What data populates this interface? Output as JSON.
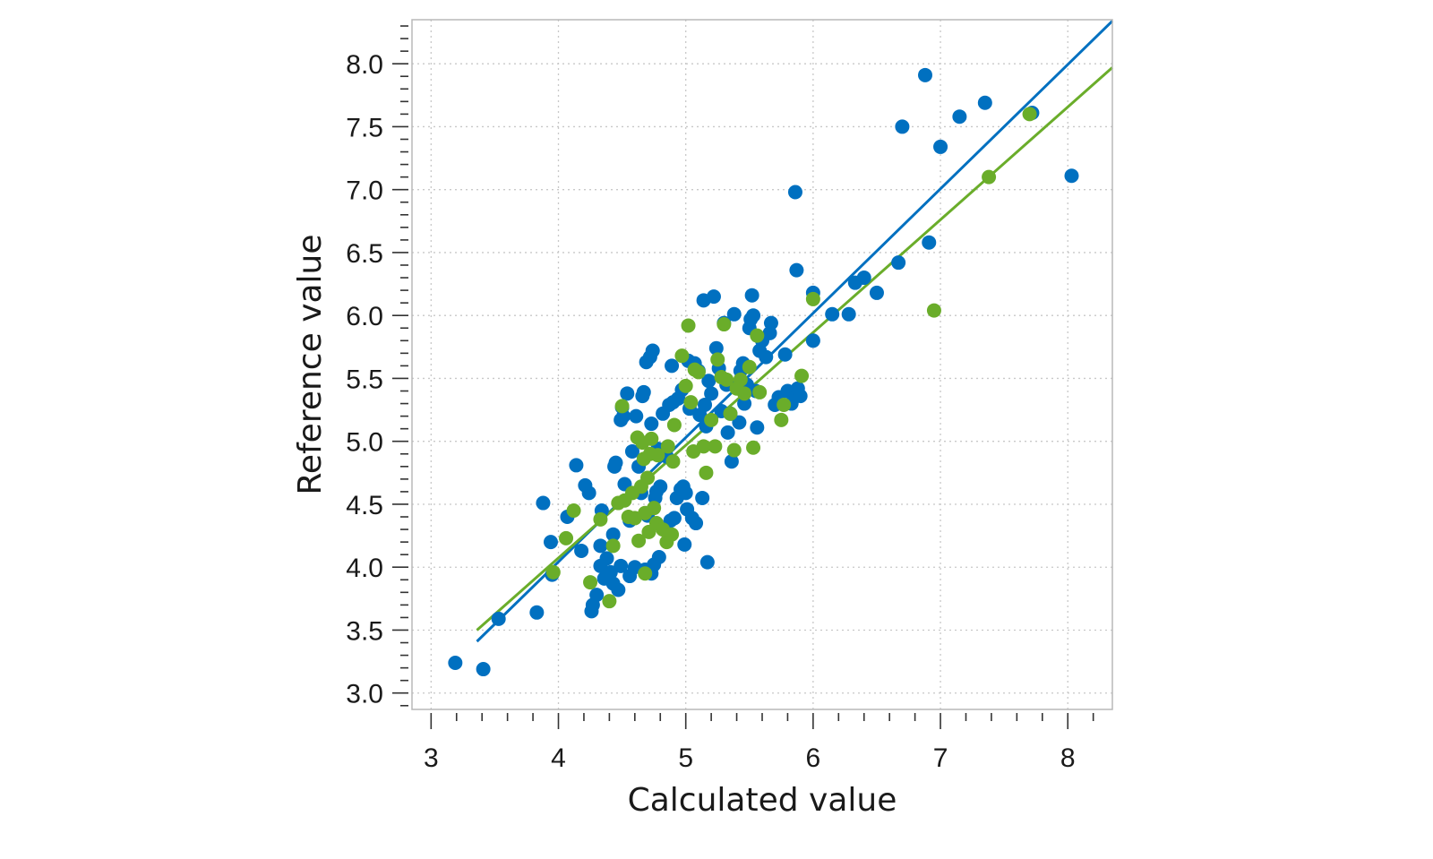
{
  "chart_data": {
    "type": "scatter",
    "xlabel": "Calculated value",
    "ylabel": "Reference value",
    "xlim": [
      2.85,
      8.35
    ],
    "ylim": [
      2.87,
      8.35
    ],
    "x_ticks": [
      "3",
      "4",
      "5",
      "6",
      "7",
      "8"
    ],
    "y_ticks": [
      "3.0",
      "3.5",
      "4.0",
      "4.5",
      "5.0",
      "5.5",
      "6.0",
      "6.5",
      "7.0",
      "7.5",
      "8.0"
    ],
    "grid": true,
    "colors": {
      "blue": "#0070c0",
      "green": "#6aad2a"
    },
    "series": [
      {
        "color": "#0070c0",
        "points": [
          [
            3.19,
            3.24
          ],
          [
            3.41,
            3.19
          ],
          [
            3.53,
            3.59
          ],
          [
            3.83,
            3.64
          ],
          [
            3.88,
            4.51
          ],
          [
            3.94,
            4.2
          ],
          [
            3.95,
            3.94
          ],
          [
            4.07,
            4.4
          ],
          [
            4.14,
            4.81
          ],
          [
            4.18,
            4.13
          ],
          [
            4.21,
            4.65
          ],
          [
            4.24,
            4.59
          ],
          [
            4.26,
            3.65
          ],
          [
            4.27,
            3.7
          ],
          [
            4.3,
            3.78
          ],
          [
            4.33,
            4.01
          ],
          [
            4.33,
            4.17
          ],
          [
            4.34,
            4.45
          ],
          [
            4.36,
            3.91
          ],
          [
            4.38,
            4.07
          ],
          [
            4.41,
            3.96
          ],
          [
            4.43,
            3.87
          ],
          [
            4.43,
            4.26
          ],
          [
            4.44,
            4.8
          ],
          [
            4.45,
            4.83
          ],
          [
            4.47,
            3.82
          ],
          [
            4.49,
            5.17
          ],
          [
            4.49,
            4.01
          ],
          [
            4.5,
            5.27
          ],
          [
            4.51,
            5.2
          ],
          [
            4.52,
            4.66
          ],
          [
            4.54,
            5.38
          ],
          [
            4.56,
            3.93
          ],
          [
            4.56,
            4.37
          ],
          [
            4.58,
            4.92
          ],
          [
            4.6,
            4.0
          ],
          [
            4.61,
            5.2
          ],
          [
            4.63,
            4.8
          ],
          [
            4.65,
            4.59
          ],
          [
            4.66,
            5.36
          ],
          [
            4.67,
            5.39
          ],
          [
            4.68,
            3.98
          ],
          [
            4.69,
            5.63
          ],
          [
            4.7,
            4.41
          ],
          [
            4.72,
            5.67
          ],
          [
            4.73,
            3.95
          ],
          [
            4.73,
            5.14
          ],
          [
            4.74,
            5.72
          ],
          [
            4.75,
            4.02
          ],
          [
            4.76,
            4.55
          ],
          [
            4.77,
            4.6
          ],
          [
            4.78,
            4.94
          ],
          [
            4.79,
            4.08
          ],
          [
            4.8,
            4.64
          ],
          [
            4.82,
            5.22
          ],
          [
            4.85,
            4.88
          ],
          [
            4.87,
            5.29
          ],
          [
            4.88,
            4.37
          ],
          [
            4.89,
            5.6
          ],
          [
            4.9,
            5.31
          ],
          [
            4.91,
            4.39
          ],
          [
            4.93,
            4.55
          ],
          [
            4.94,
            5.34
          ],
          [
            4.96,
            4.62
          ],
          [
            4.97,
            5.41
          ],
          [
            4.98,
            4.64
          ],
          [
            4.99,
            4.18
          ],
          [
            5.0,
            4.59
          ],
          [
            5.01,
            4.46
          ],
          [
            5.02,
            5.64
          ],
          [
            5.03,
            5.26
          ],
          [
            5.05,
            4.39
          ],
          [
            5.07,
            5.62
          ],
          [
            5.08,
            4.35
          ],
          [
            5.1,
            5.56
          ],
          [
            5.11,
            5.21
          ],
          [
            5.13,
            4.55
          ],
          [
            5.14,
            6.12
          ],
          [
            5.15,
            5.29
          ],
          [
            5.16,
            5.12
          ],
          [
            5.17,
            4.04
          ],
          [
            5.18,
            5.48
          ],
          [
            5.2,
            5.38
          ],
          [
            5.22,
            6.15
          ],
          [
            5.24,
            5.74
          ],
          [
            5.26,
            5.58
          ],
          [
            5.28,
            5.24
          ],
          [
            5.3,
            5.94
          ],
          [
            5.32,
            5.45
          ],
          [
            5.33,
            5.07
          ],
          [
            5.35,
            5.22
          ],
          [
            5.36,
            4.84
          ],
          [
            5.38,
            6.01
          ],
          [
            5.4,
            5.44
          ],
          [
            5.42,
            5.15
          ],
          [
            5.43,
            5.56
          ],
          [
            5.45,
            5.62
          ],
          [
            5.46,
            5.3
          ],
          [
            5.48,
            5.45
          ],
          [
            5.5,
            5.9
          ],
          [
            5.51,
            5.97
          ],
          [
            5.52,
            6.16
          ],
          [
            5.53,
            6.0
          ],
          [
            5.55,
            5.4
          ],
          [
            5.56,
            5.11
          ],
          [
            5.58,
            5.72
          ],
          [
            5.6,
            5.8
          ],
          [
            5.63,
            5.67
          ],
          [
            5.66,
            5.86
          ],
          [
            5.67,
            5.94
          ],
          [
            5.7,
            5.29
          ],
          [
            5.73,
            5.35
          ],
          [
            5.78,
            5.69
          ],
          [
            5.8,
            5.4
          ],
          [
            5.83,
            5.3
          ],
          [
            5.85,
            5.35
          ],
          [
            5.86,
            6.98
          ],
          [
            5.87,
            6.36
          ],
          [
            5.88,
            5.42
          ],
          [
            5.9,
            5.36
          ],
          [
            6.0,
            6.18
          ],
          [
            6.0,
            5.8
          ],
          [
            6.15,
            6.01
          ],
          [
            6.28,
            6.01
          ],
          [
            6.33,
            6.26
          ],
          [
            6.4,
            6.3
          ],
          [
            6.5,
            6.18
          ],
          [
            6.67,
            6.42
          ],
          [
            6.7,
            7.5
          ],
          [
            6.88,
            7.91
          ],
          [
            6.91,
            6.58
          ],
          [
            7.0,
            7.34
          ],
          [
            7.15,
            7.58
          ],
          [
            7.35,
            7.69
          ],
          [
            7.72,
            7.61
          ],
          [
            8.03,
            7.11
          ]
        ]
      },
      {
        "color": "#6aad2a",
        "points": [
          [
            3.96,
            3.96
          ],
          [
            4.06,
            4.23
          ],
          [
            4.12,
            4.45
          ],
          [
            4.25,
            3.88
          ],
          [
            4.33,
            4.38
          ],
          [
            4.4,
            3.73
          ],
          [
            4.43,
            4.17
          ],
          [
            4.47,
            4.51
          ],
          [
            4.5,
            5.28
          ],
          [
            4.52,
            4.53
          ],
          [
            4.55,
            4.4
          ],
          [
            4.58,
            4.59
          ],
          [
            4.6,
            4.39
          ],
          [
            4.62,
            5.03
          ],
          [
            4.63,
            4.21
          ],
          [
            4.65,
            4.64
          ],
          [
            4.66,
            4.99
          ],
          [
            4.67,
            4.86
          ],
          [
            4.68,
            4.43
          ],
          [
            4.68,
            3.95
          ],
          [
            4.7,
            4.71
          ],
          [
            4.71,
            4.28
          ],
          [
            4.72,
            4.9
          ],
          [
            4.73,
            5.02
          ],
          [
            4.75,
            4.47
          ],
          [
            4.77,
            4.35
          ],
          [
            4.78,
            4.89
          ],
          [
            4.82,
            4.3
          ],
          [
            4.85,
            4.2
          ],
          [
            4.86,
            4.96
          ],
          [
            4.89,
            4.26
          ],
          [
            4.9,
            4.84
          ],
          [
            4.91,
            5.13
          ],
          [
            4.97,
            5.68
          ],
          [
            5.0,
            5.44
          ],
          [
            5.02,
            5.92
          ],
          [
            5.04,
            5.31
          ],
          [
            5.06,
            4.92
          ],
          [
            5.07,
            5.57
          ],
          [
            5.1,
            5.55
          ],
          [
            5.14,
            4.96
          ],
          [
            5.16,
            4.75
          ],
          [
            5.2,
            5.17
          ],
          [
            5.23,
            4.96
          ],
          [
            5.25,
            5.65
          ],
          [
            5.28,
            5.51
          ],
          [
            5.3,
            5.93
          ],
          [
            5.32,
            5.49
          ],
          [
            5.35,
            5.22
          ],
          [
            5.38,
            4.93
          ],
          [
            5.4,
            5.42
          ],
          [
            5.43,
            5.49
          ],
          [
            5.46,
            5.38
          ],
          [
            5.5,
            5.59
          ],
          [
            5.53,
            4.95
          ],
          [
            5.56,
            5.84
          ],
          [
            5.58,
            5.39
          ],
          [
            5.75,
            5.17
          ],
          [
            5.77,
            5.29
          ],
          [
            5.91,
            5.52
          ],
          [
            6.0,
            6.13
          ],
          [
            6.95,
            6.04
          ],
          [
            7.38,
            7.1
          ],
          [
            7.7,
            7.6
          ]
        ]
      }
    ],
    "regression_lines": [
      {
        "color": "#0070c0",
        "x": [
          3.36,
          8.35
        ],
        "y": [
          3.41,
          8.34
        ]
      },
      {
        "color": "#6aad2a",
        "x": [
          3.36,
          8.35
        ],
        "y": [
          3.5,
          7.97
        ]
      }
    ]
  }
}
